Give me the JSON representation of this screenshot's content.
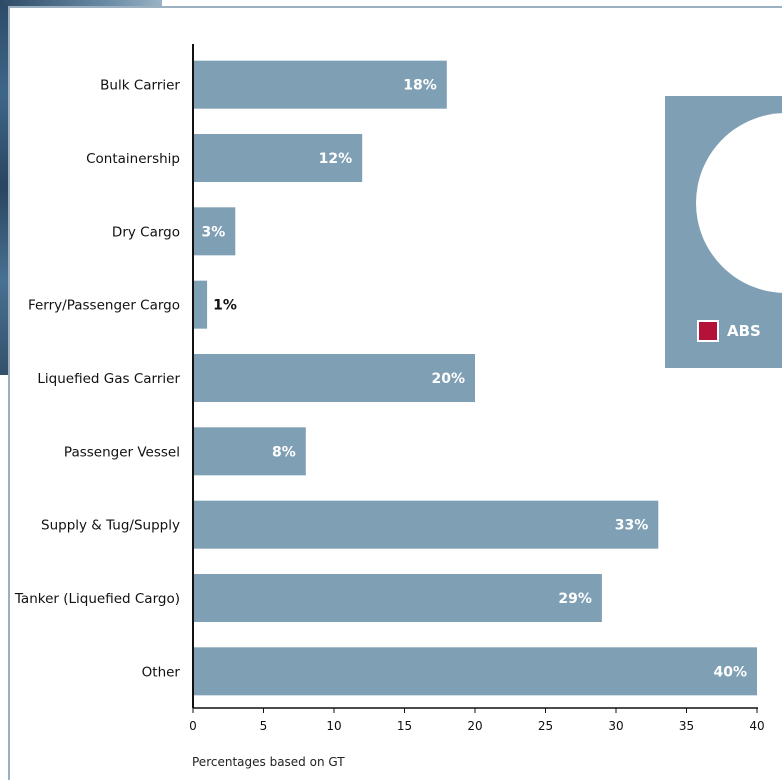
{
  "legend": {
    "label": "ABS",
    "color": "#b5123a"
  },
  "footnote": "Percentages based on GT",
  "chart_data": {
    "type": "bar",
    "orientation": "horizontal",
    "categories": [
      "Bulk Carrier",
      "Containership",
      "Dry Cargo",
      "Ferry/Passenger Cargo",
      "Liquefied Gas Carrier",
      "Passenger Vessel",
      "Supply & Tug/Supply",
      "Tanker (Liquefied Cargo)",
      "Other"
    ],
    "values": [
      18,
      12,
      3,
      1,
      20,
      8,
      33,
      29,
      40
    ],
    "value_labels": [
      "18%",
      "12%",
      "3%",
      "1%",
      "20%",
      "8%",
      "33%",
      "29%",
      "40%"
    ],
    "xlim": [
      0,
      40
    ],
    "xticks": [
      0,
      5,
      10,
      15,
      20,
      25,
      30,
      35,
      40
    ],
    "grid": false,
    "bar_color": "#7f9fb5",
    "label_color_inside": "#ffffff",
    "label_color_outside": "#111111"
  }
}
